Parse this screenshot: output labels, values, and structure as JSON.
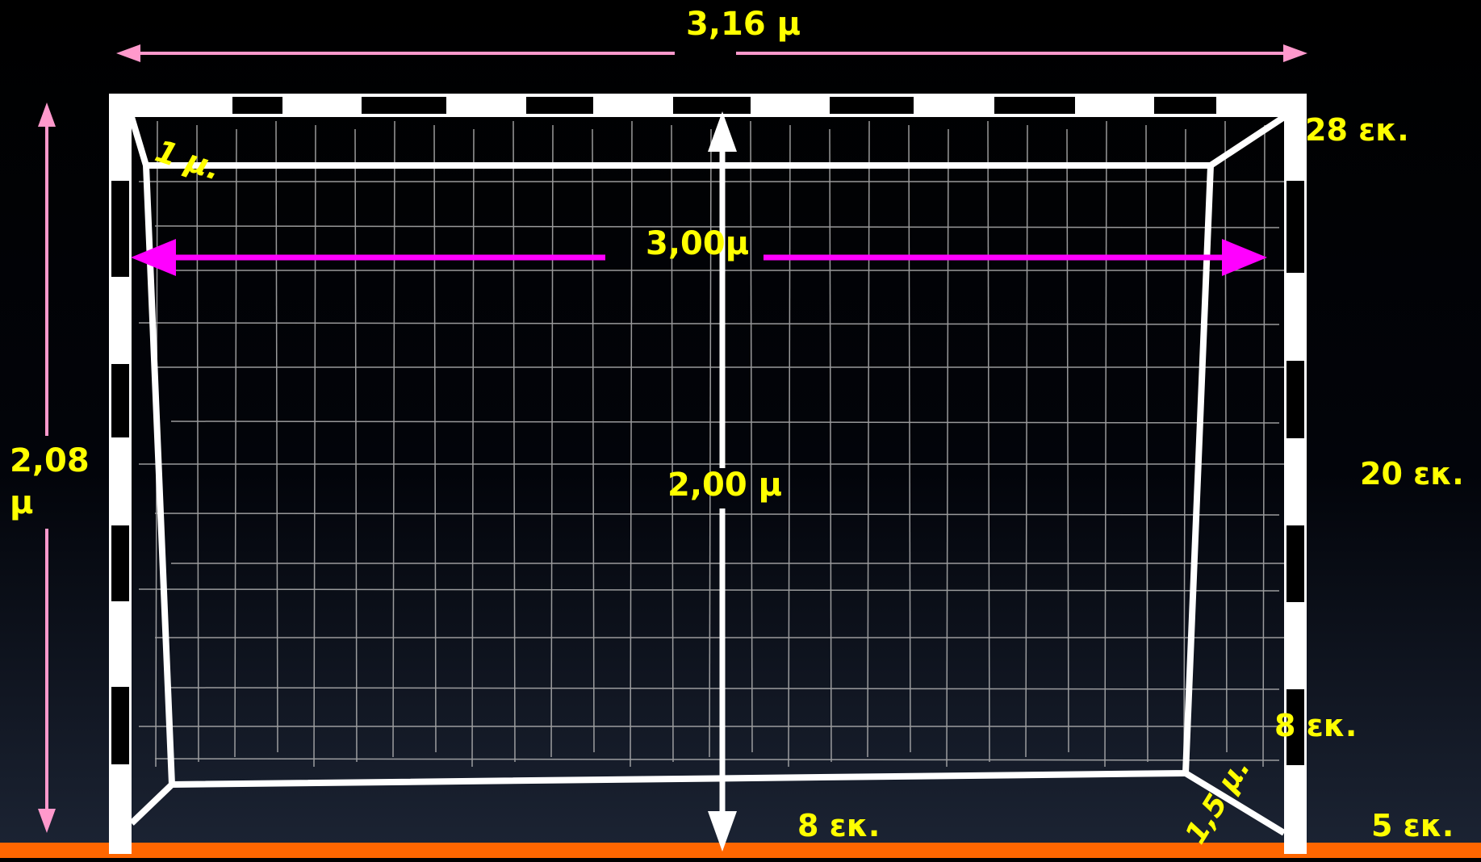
{
  "labels": {
    "total_width": "3,16 μ",
    "inner_width": "3,00μ",
    "inner_height": "2,00 μ",
    "total_height_line1": "2,08",
    "total_height_line2": "μ",
    "top_depth": "1 μ.",
    "bottom_depth": "1,5 μ.",
    "crossbar_thickness": "28 εκ.",
    "stripe_length": "20 εκ.",
    "post_width": "8 εκ.",
    "bottom_thickness": "8 εκ.",
    "goal_line_width": "5 εκ."
  },
  "colors": {
    "background_top": "#000000",
    "background_bottom": "#1c2434",
    "label": "#ffff00",
    "outer_arrow": "#ff99cc",
    "inner_arrow": "#ff00ff",
    "goal_line": "#ff6600",
    "frame": "#ffffff",
    "net": "#b4b4b4"
  }
}
